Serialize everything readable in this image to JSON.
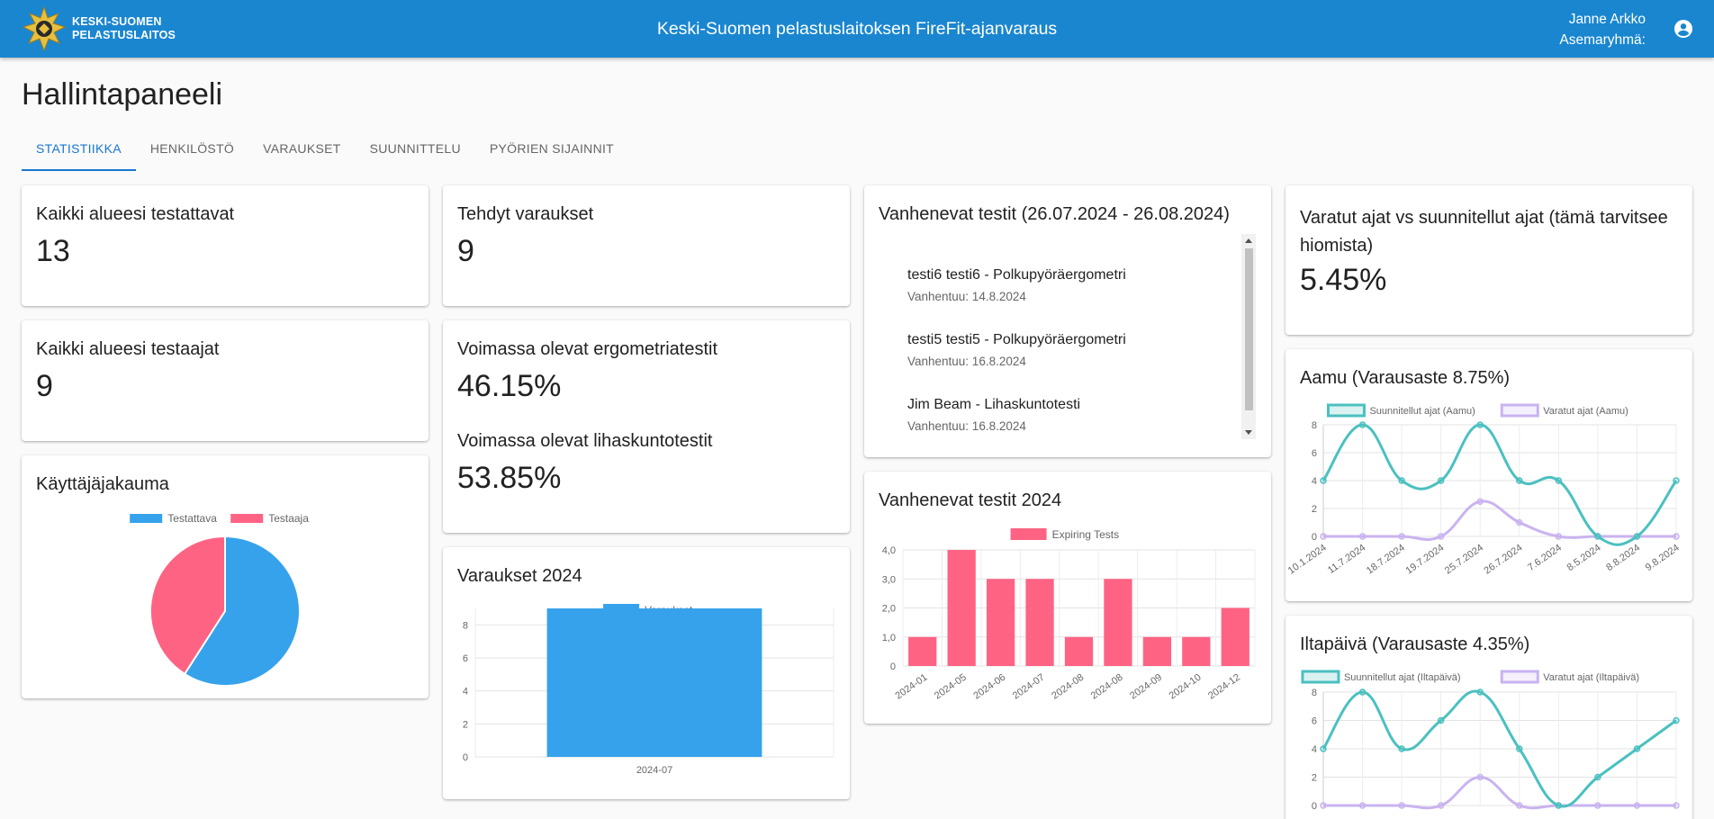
{
  "header": {
    "logo_line1": "KESKI-SUOMEN",
    "logo_line2": "PELASTUSLAITOS",
    "title": "Keski-Suomen pelastuslaitoksen FireFit-ajanvaraus",
    "user_name": "Janne Arkko",
    "user_group": "Asemaryhmä:"
  },
  "page_title": "Hallintapaneeli",
  "tabs": [
    {
      "label": "STATISTIIKKA",
      "active": true
    },
    {
      "label": "HENKILÖSTÖ"
    },
    {
      "label": "VARAUKSET"
    },
    {
      "label": "SUUNNITTELU"
    },
    {
      "label": "PYÖRIEN SIJAINNIT"
    }
  ],
  "cards": {
    "testees": {
      "title": "Kaikki alueesi testattavat",
      "value": "13"
    },
    "testers": {
      "title": "Kaikki alueesi testaajat",
      "value": "9"
    },
    "reservations": {
      "title": "Tehdyt varaukset",
      "value": "9"
    },
    "valid_tests": {
      "ergo_title": "Voimassa olevat ergometriatestit",
      "ergo_value": "46.15%",
      "strength_title": "Voimassa olevat lihaskuntotestit",
      "strength_value": "53.85%"
    },
    "expiring_list": {
      "title": "Vanhenevat testit (26.07.2024 - 26.08.2024)",
      "items": [
        {
          "primary": "testi6 testi6 - Polkupyöräergometri",
          "secondary": "Vanhentuu: 14.8.2024"
        },
        {
          "primary": "testi5 testi5 - Polkupyöräergometri",
          "secondary": "Vanhentuu: 16.8.2024"
        },
        {
          "primary": "Jim Beam - Lihaskuntotesti",
          "secondary": "Vanhentuu: 16.8.2024"
        }
      ]
    },
    "booked_vs_planned": {
      "title_line1": "Varatut ajat vs suunnitellut ajat (tämä tarvitsee",
      "title_line2": "hiomista)",
      "value": "5.45%"
    }
  },
  "colors": {
    "appbar": "#1a86d0",
    "tab_active": "#1976d2",
    "blue": "#36a2eb",
    "pink": "#ff6384",
    "teal": "#4bc0c0",
    "purple": "#c9b3f0"
  },
  "chart_data": [
    {
      "id": "user_distribution",
      "type": "pie",
      "title": "Käyttäjäjakauma",
      "legend_position": "top",
      "labels": [
        "Testattava",
        "Testaaja"
      ],
      "values": [
        13,
        9
      ]
    },
    {
      "id": "reservations_2024",
      "type": "bar",
      "title": "Varaukset 2024",
      "legend_position": "top",
      "categories": [
        "2024-07"
      ],
      "series": [
        {
          "name": "Varaukset",
          "values": [
            9
          ]
        }
      ],
      "ylim": [
        0,
        9
      ],
      "yticks": [
        0,
        2,
        4,
        6,
        8
      ],
      "grid": true
    },
    {
      "id": "expiring_2024",
      "type": "bar",
      "title": "Vanhenevat testit 2024",
      "legend_position": "top",
      "categories": [
        "2024-01",
        "2024-05",
        "2024-06",
        "2024-07",
        "2024-08",
        "2024-08",
        "2024-09",
        "2024-10",
        "2024-12"
      ],
      "series": [
        {
          "name": "Expiring Tests",
          "values": [
            1,
            4,
            3,
            3,
            1,
            3,
            1,
            1,
            2
          ]
        }
      ],
      "ylim": [
        0,
        4
      ],
      "yticks": [
        "0",
        "1,0",
        "2,0",
        "3,0",
        "4,0"
      ],
      "grid": true
    },
    {
      "id": "morning",
      "type": "line",
      "title": "Aamu (Varausaste 8.75%)",
      "legend_position": "top",
      "x": [
        "10.1.2024",
        "11.7.2024",
        "18.7.2024",
        "19.7.2024",
        "25.7.2024",
        "26.7.2024",
        "7.6.2024",
        "8.5.2024",
        "8.8.2024",
        "9.8.2024"
      ],
      "series": [
        {
          "name": "Suunnitellut ajat (Aamu)",
          "values": [
            4,
            8,
            4,
            4,
            8,
            4,
            4,
            0,
            0,
            4
          ]
        },
        {
          "name": "Varatut ajat (Aamu)",
          "values": [
            0,
            0,
            0,
            0,
            2.5,
            1,
            0,
            0,
            0,
            0
          ]
        }
      ],
      "ylim": [
        0,
        8
      ],
      "yticks": [
        0,
        2,
        4,
        6,
        8
      ],
      "grid": true
    },
    {
      "id": "afternoon",
      "type": "line",
      "title": "Iltapäivä (Varausaste 4.35%)",
      "legend_position": "top",
      "series": [
        {
          "name": "Suunnitellut ajat (Iltapäivä)",
          "values": [
            4,
            8,
            4,
            6,
            8,
            4,
            0,
            2,
            4,
            6
          ]
        },
        {
          "name": "Varatut ajat (Iltapäivä)",
          "values": [
            0,
            0,
            0,
            0,
            2,
            0,
            0,
            0,
            0,
            0
          ]
        }
      ],
      "ylim": [
        0,
        8
      ],
      "yticks": [
        0,
        2,
        4,
        6,
        8
      ],
      "grid": true
    }
  ]
}
